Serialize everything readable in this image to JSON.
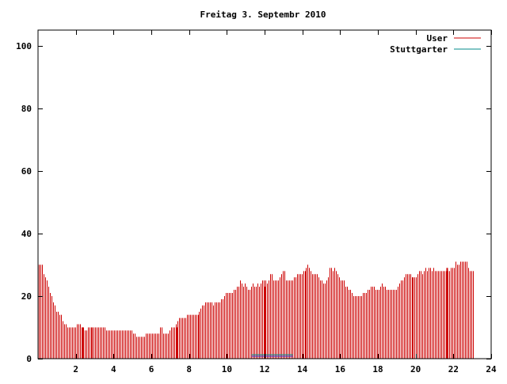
{
  "chart_data": {
    "type": "bar",
    "title": "Freitag 3. Septembr 2010",
    "xlim": [
      0,
      24
    ],
    "ylim": [
      0,
      105
    ],
    "x_ticks": [
      "2",
      "4",
      "6",
      "8",
      "10",
      "12",
      "14",
      "16",
      "18",
      "20",
      "22",
      "24"
    ],
    "y_ticks": [
      "0",
      "20",
      "40",
      "60",
      "80",
      "100"
    ],
    "legend_position": "top-right",
    "grid": false,
    "series": [
      {
        "name": "User",
        "color": "#cc0000",
        "bar_step_hours": 0.0833,
        "values": [
          30,
          30,
          30,
          27,
          26,
          25,
          23,
          21,
          20,
          18,
          17,
          15,
          15,
          14,
          14,
          12,
          11,
          11,
          10,
          10,
          10,
          10,
          10,
          10,
          11,
          11,
          11,
          10,
          10,
          9,
          9,
          10,
          10,
          10,
          10,
          10,
          10,
          10,
          10,
          10,
          10,
          10,
          10,
          9,
          9,
          9,
          9,
          9,
          9,
          9,
          9,
          9,
          9,
          9,
          9,
          9,
          9,
          9,
          9,
          9,
          8,
          8,
          7,
          7,
          7,
          7,
          7,
          7,
          8,
          8,
          8,
          8,
          8,
          8,
          8,
          8,
          8,
          10,
          10,
          8,
          8,
          8,
          8,
          9,
          10,
          10,
          10,
          11,
          12,
          13,
          13,
          13,
          13,
          13,
          14,
          14,
          14,
          14,
          14,
          14,
          14,
          14,
          15,
          16,
          17,
          17,
          18,
          18,
          18,
          18,
          18,
          17,
          18,
          18,
          18,
          18,
          19,
          19,
          20,
          21,
          21,
          21,
          21,
          21,
          22,
          22,
          23,
          23,
          25,
          24,
          23,
          24,
          23,
          22,
          22,
          23,
          24,
          23,
          23,
          24,
          23,
          24,
          25,
          25,
          25,
          24,
          25,
          27,
          27,
          25,
          25,
          25,
          25,
          26,
          27,
          28,
          28,
          25,
          25,
          25,
          25,
          25,
          26,
          26,
          27,
          27,
          27,
          27,
          28,
          28,
          29,
          30,
          29,
          28,
          27,
          27,
          27,
          27,
          26,
          25,
          25,
          24,
          24,
          25,
          26,
          29,
          29,
          28,
          29,
          28,
          27,
          26,
          25,
          25,
          25,
          23,
          23,
          22,
          22,
          21,
          20,
          20,
          20,
          20,
          20,
          20,
          21,
          21,
          21,
          22,
          22,
          23,
          23,
          23,
          22,
          22,
          22,
          23,
          24,
          23,
          23,
          22,
          22,
          22,
          22,
          22,
          22,
          22,
          23,
          24,
          25,
          25,
          26,
          27,
          27,
          27,
          27,
          26,
          26,
          26,
          26,
          27,
          28,
          28,
          27,
          28,
          29,
          28,
          29,
          29,
          28,
          29,
          28,
          28,
          28,
          28,
          28,
          28,
          28,
          28,
          28,
          28,
          29,
          29,
          29,
          31,
          30,
          30,
          31,
          31,
          31,
          31,
          31,
          29,
          28,
          28,
          28
        ],
        "peaks": [
          {
            "x": 2.33,
            "value": 10
          },
          {
            "x": 7.33,
            "value": 10
          },
          {
            "x": 12.0,
            "value": 23
          },
          {
            "x": 21.67,
            "value": 29
          }
        ]
      },
      {
        "name": "Stuttgarter",
        "color": "#008b8b",
        "segment": {
          "x_start": 11.3,
          "x_end": 13.5,
          "value": 1
        }
      }
    ]
  }
}
